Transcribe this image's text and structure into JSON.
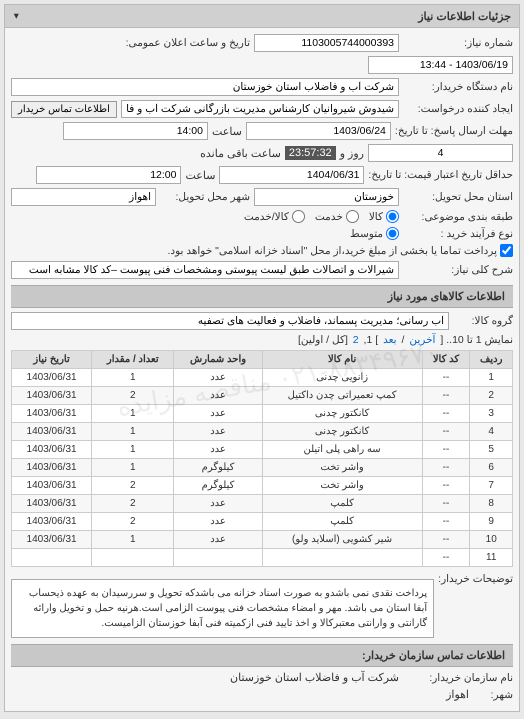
{
  "panel_title": "جزئیات اطلاعات نیاز",
  "collapse_glyph": "▾",
  "fields": {
    "req_no_label": "شماره نیاز:",
    "req_no": "1103005744000393",
    "pub_time_label": "تاریخ و ساعت اعلان عمومی:",
    "pub_time": "1403/06/19 - 13:44",
    "buyer_label": "نام دستگاه خریدار:",
    "buyer": "شرکت آب و فاضلاب استان خوزستان",
    "requester_label": "ایجاد کننده درخواست:",
    "requester": "شیدوش شیروانیان کارشناس مدیریت بازرگانی شرکت آب و فاضلاب استان خوز",
    "contact_btn": "اطلاعات تماس خریدار",
    "deadline_reply_label": "مهلت ارسال پاسخ: تا تاریخ:",
    "deadline_reply_date": "1403/06/24",
    "time_label": "ساعت",
    "deadline_reply_time": "14:00",
    "days_remain": "4",
    "days_remain_label": "روز و",
    "countdown": "23:57:32",
    "countdown_label": "ساعت باقی مانده",
    "price_validity_label": "حداقل تاریخ اعتبار قیمت: تا تاریخ:",
    "price_validity_date": "1404/06/31",
    "price_validity_time": "12:00",
    "province_label": "استان محل تحویل:",
    "province": "خوزستان",
    "city_label": "شهر محل تحویل:",
    "city": "اهواز",
    "pack_label": "طبقه بندی موضوعی:",
    "pack_opts": [
      "کالا",
      "خدمت",
      "کالا/خدمت"
    ],
    "pack_selected": 0,
    "buy_type_label": "نوع فرآیند خرید :",
    "buy_type_opts": [
      "متوسط"
    ],
    "buy_type_selected": 0,
    "tick_label": "پرداخت تماما یا بخشی از مبلغ خرید،از محل \"اسناد خزانه اسلامی\" خواهد بود.",
    "desc_label": "شرح کلی نیاز:",
    "desc": "شیرالات و اتصالات طبق لیست پیوستی ومشخصات فنی پیوست –کد کالا مشابه است"
  },
  "goods_section_title": "اطلاعات کالاهای مورد نیاز",
  "group_label": "گروه کالا:",
  "group_value": "آب رسانی؛ مدیریت پسماند، فاضلاب و فعالیت های تصفیه",
  "pager_text_prefix": "نمایش 1 تا 10.. [ ",
  "pager_last": "آخرین",
  "pager_sep": " / ",
  "pager_next": "بعد",
  "pager_text_mid": " ] 1, ",
  "pager_page2": "2",
  "pager_text_suffix": " [کل / اولین]",
  "table": {
    "headers": [
      "ردیف",
      "کد کالا",
      "نام کالا",
      "واحد شمارش",
      "تعداد / مقدار",
      "تاریخ نیاز"
    ],
    "rows": [
      [
        "1",
        "--",
        "زانویی چدنی",
        "عدد",
        "1",
        "1403/06/31"
      ],
      [
        "2",
        "--",
        "کمپ تعمیراتی چدن داکتیل",
        "عدد",
        "2",
        "1403/06/31"
      ],
      [
        "3",
        "--",
        "کانکتور چدنی",
        "عدد",
        "1",
        "1403/06/31"
      ],
      [
        "4",
        "--",
        "کانکتور چدنی",
        "عدد",
        "1",
        "1403/06/31"
      ],
      [
        "5",
        "--",
        "سه راهی پلی اتیلن",
        "عدد",
        "1",
        "1403/06/31"
      ],
      [
        "6",
        "--",
        "واشر تخت",
        "کیلوگرم",
        "1",
        "1403/06/31"
      ],
      [
        "7",
        "--",
        "واشر تخت",
        "کیلوگرم",
        "2",
        "1403/06/31"
      ],
      [
        "8",
        "--",
        "کلمپ",
        "عدد",
        "2",
        "1403/06/31"
      ],
      [
        "9",
        "--",
        "کلمپ",
        "عدد",
        "2",
        "1403/06/31"
      ],
      [
        "10",
        "--",
        "شیر کشویی (اسلاید ولو)",
        "عدد",
        "1",
        "1403/06/31"
      ],
      [
        "11",
        "--",
        "",
        "",
        "",
        ""
      ]
    ]
  },
  "notes_label": "توضیحات خریدار:",
  "notes_text": "پرداخت نقدی نمی باشدو به صورت اسناد خزانه می باشدکه تحویل و سررسیدان به عهده ذیحساب آبفا استان می باشد. مهر و امضاء مشخصات فنی پیوست الزامی است.هرنیه حمل و تخویل وارائه گارانتی و وارانتی معتبرکالا و اخذ تایید فنی ازکمیته فنی آبفا خوزستان الزامیست.",
  "contact_title": "اطلاعات تماس سازمان خریدار:",
  "org_label": "نام سازمان خریدار:",
  "org_value": "شرکت آب و فاضلاب استان خوزستان",
  "city_label2": "شهر:",
  "city_value2": "اهواز",
  "watermark": "۰۲۱-۸۸۳۴۹۶۷۰  مناقصه  مزایده"
}
